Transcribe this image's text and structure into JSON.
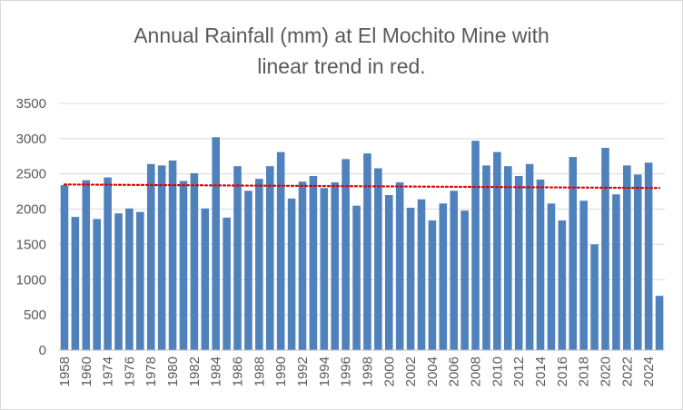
{
  "chart_data": {
    "type": "bar",
    "title_lines": [
      "Annual Rainfall (mm) at El Mochito Mine with",
      "linear trend in red."
    ],
    "xlabel": "",
    "ylabel": "",
    "ylim": [
      0,
      3500
    ],
    "y_ticks": [
      0,
      500,
      1000,
      1500,
      2000,
      2500,
      3000,
      3500
    ],
    "grid": true,
    "legend": "none",
    "bar_color": "#4f81bd",
    "trend_color": "#e00000",
    "categories": [
      "1958",
      "1959",
      "1960",
      "1973",
      "1974",
      "1975",
      "1976",
      "1977",
      "1978",
      "1979",
      "1980",
      "1981",
      "1982",
      "1983",
      "1984",
      "1985",
      "1986",
      "1987",
      "1988",
      "1989",
      "1990",
      "1991",
      "1992",
      "1993",
      "1994",
      "1995",
      "1996",
      "1997",
      "1998",
      "1999",
      "2000",
      "2001",
      "2002",
      "2003",
      "2004",
      "2005",
      "2006",
      "2007",
      "2008",
      "2009",
      "2010",
      "2011",
      "2012",
      "2013",
      "2014",
      "2015",
      "2016",
      "2017",
      "2018",
      "2019",
      "2020",
      "2021",
      "2022",
      "2023",
      "2024",
      "2025"
    ],
    "x_tick_labels": [
      "1958",
      "1960",
      "1974",
      "1976",
      "1978",
      "1980",
      "1982",
      "1984",
      "1986",
      "1988",
      "1990",
      "1992",
      "1994",
      "1996",
      "1998",
      "2000",
      "2002",
      "2004",
      "2006",
      "2008",
      "2010",
      "2012",
      "2014",
      "2016",
      "2018",
      "2020",
      "2022",
      "2024"
    ],
    "series": [
      {
        "values": [
          2340,
          1890,
          2410,
          1860,
          2450,
          1940,
          2010,
          1960,
          2640,
          2620,
          2690,
          2400,
          2510,
          2010,
          3020,
          1880,
          2610,
          2260,
          2430,
          2610,
          2810,
          2150,
          2390,
          2470,
          2300,
          2380,
          2710,
          2050,
          2790,
          2580,
          2200,
          2380,
          2020,
          2140,
          1840,
          2080,
          2260,
          1980,
          2970,
          2620,
          2810,
          2610,
          2470,
          2640,
          2420,
          2080,
          1840,
          2740,
          2120,
          1500,
          2870,
          2210,
          2620,
          2490,
          2660,
          770
        ]
      }
    ],
    "trend": {
      "type": "linear",
      "start": 2350,
      "end": 2300
    }
  }
}
